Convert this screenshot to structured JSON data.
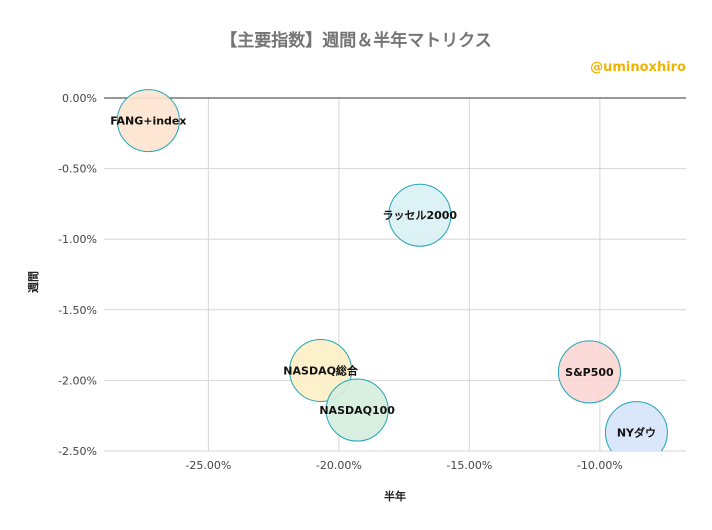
{
  "chart_data": {
    "type": "scatter",
    "title": "【主要指数】週間＆半年マトリクス",
    "watermark": "@uminoxhiro",
    "xlabel": "半年",
    "ylabel": "週間",
    "xlim": [
      -29.0,
      -6.7
    ],
    "ylim": [
      -2.5,
      0.0
    ],
    "xticks": [
      -25,
      -20,
      -15,
      -10
    ],
    "yticks": [
      0.0,
      -0.5,
      -1.0,
      -1.5,
      -2.0,
      -2.5
    ],
    "xtick_labels": [
      "-25.00%",
      "-20.00%",
      "-15.00%",
      "-10.00%"
    ],
    "ytick_labels": [
      "0.00%",
      "-0.50%",
      "-1.00%",
      "-1.50%",
      "-2.00%",
      "-2.50%"
    ],
    "points": [
      {
        "label": "FANG+index",
        "x": -27.3,
        "y": -0.16,
        "color": "#fde3cf"
      },
      {
        "label": "ラッセル2000",
        "x": -16.9,
        "y": -0.83,
        "color": "#d9f1f4"
      },
      {
        "label": "NASDAQ総合",
        "x": -20.7,
        "y": -1.93,
        "color": "#fdf0c5"
      },
      {
        "label": "NASDAQ100",
        "x": -19.3,
        "y": -2.21,
        "color": "#d5eedd"
      },
      {
        "label": "S&P500",
        "x": -10.4,
        "y": -1.94,
        "color": "#fbd6d3"
      },
      {
        "label": "NYダウ",
        "x": -8.6,
        "y": -2.37,
        "color": "#d6e3fa"
      }
    ],
    "bubble_stroke": "#22a4b8"
  }
}
